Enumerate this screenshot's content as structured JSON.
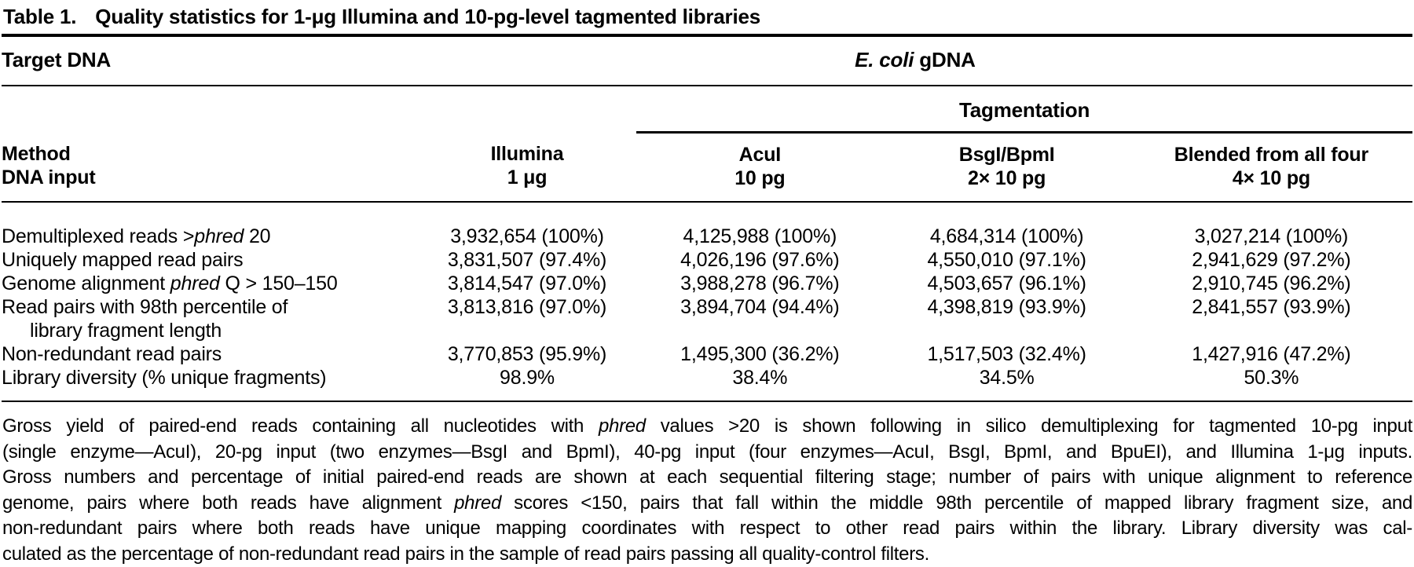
{
  "title": {
    "label": "Table 1.",
    "caption": "Quality statistics for 1-μg Illumina and 10-pg-level tagmented libraries"
  },
  "table": {
    "target_dna_label": "Target DNA",
    "group_header": [
      {
        "t": "E. coli",
        "i": true
      },
      {
        "t": " gDNA",
        "i": false
      }
    ],
    "tagmentation_label": "Tagmentation",
    "method_label": "Method",
    "dna_input_label": "DNA input",
    "columns": [
      {
        "method": "Illumina",
        "input": "1 μg"
      },
      {
        "method": "AcuI",
        "input": "10 pg"
      },
      {
        "method": "BsgI/BpmI",
        "input": "2× 10 pg"
      },
      {
        "method": "Blended from all four",
        "input": "4× 10 pg"
      }
    ],
    "rows": [
      {
        "label": [
          {
            "t": "Demultiplexed reads >",
            "i": false
          },
          {
            "t": "phred",
            "i": true
          },
          {
            "t": " 20",
            "i": false
          }
        ],
        "values": [
          "3,932,654 (100%)",
          "4,125,988 (100%)",
          "4,684,314 (100%)",
          "3,027,214 (100%)"
        ]
      },
      {
        "label": [
          {
            "t": "Uniquely mapped read pairs",
            "i": false
          }
        ],
        "values": [
          "3,831,507 (97.4%)",
          "4,026,196 (97.6%)",
          "4,550,010 (97.1%)",
          "2,941,629 (97.2%)"
        ]
      },
      {
        "label": [
          {
            "t": "Genome alignment ",
            "i": false
          },
          {
            "t": "phred",
            "i": true
          },
          {
            "t": " Q > 150–150",
            "i": false
          }
        ],
        "values": [
          "3,814,547 (97.0%)",
          "3,988,278 (96.7%)",
          "4,503,657 (96.1%)",
          "2,910,745 (96.2%)"
        ]
      },
      {
        "label": [
          {
            "t": "Read pairs with 98th percentile of",
            "i": false
          }
        ],
        "label_line2": "library fragment length",
        "values": [
          "3,813,816 (97.0%)",
          "3,894,704 (94.4%)",
          "4,398,819 (93.9%)",
          "2,841,557 (93.9%)"
        ]
      },
      {
        "label": [
          {
            "t": "Non-redundant read pairs",
            "i": false
          }
        ],
        "values": [
          "3,770,853 (95.9%)",
          "1,495,300 (36.2%)",
          "1,517,503 (32.4%)",
          "1,427,916 (47.2%)"
        ]
      },
      {
        "label": [
          {
            "t": "Library diversity (% unique fragments)",
            "i": false
          }
        ],
        "values": [
          "98.9%",
          "38.4%",
          "34.5%",
          "50.3%"
        ]
      }
    ]
  },
  "footnote": {
    "lines": [
      [
        {
          "t": "Gross yield of paired-end reads containing all nucleotides with ",
          "i": false
        },
        {
          "t": "phred",
          "i": true
        },
        {
          "t": " values >20 is shown following in silico demultiplexing for tagmented 10-pg input",
          "i": false
        }
      ],
      [
        {
          "t": "(single enzyme—AcuI), 20-pg input (two enzymes—BsgI and BpmI), 40-pg input (four enzymes—AcuI, BsgI, BpmI, and BpuEI), and Illumina 1-μg inputs.",
          "i": false
        }
      ],
      [
        {
          "t": "Gross numbers and percentage of initial paired-end reads are shown at each sequential filtering stage; number of pairs with unique alignment to reference",
          "i": false
        }
      ],
      [
        {
          "t": "genome, pairs where both reads have alignment ",
          "i": false
        },
        {
          "t": "phred",
          "i": true
        },
        {
          "t": " scores <150, pairs that fall within the middle 98th percentile of mapped library fragment size, and",
          "i": false
        }
      ],
      [
        {
          "t": "non-redundant pairs where both reads have unique mapping coordinates with respect to other read pairs within the library. Library diversity was cal-",
          "i": false
        }
      ],
      [
        {
          "t": "culated as the percentage of non-redundant read pairs in the sample of read pairs passing all quality-control filters.",
          "i": false
        }
      ]
    ]
  }
}
